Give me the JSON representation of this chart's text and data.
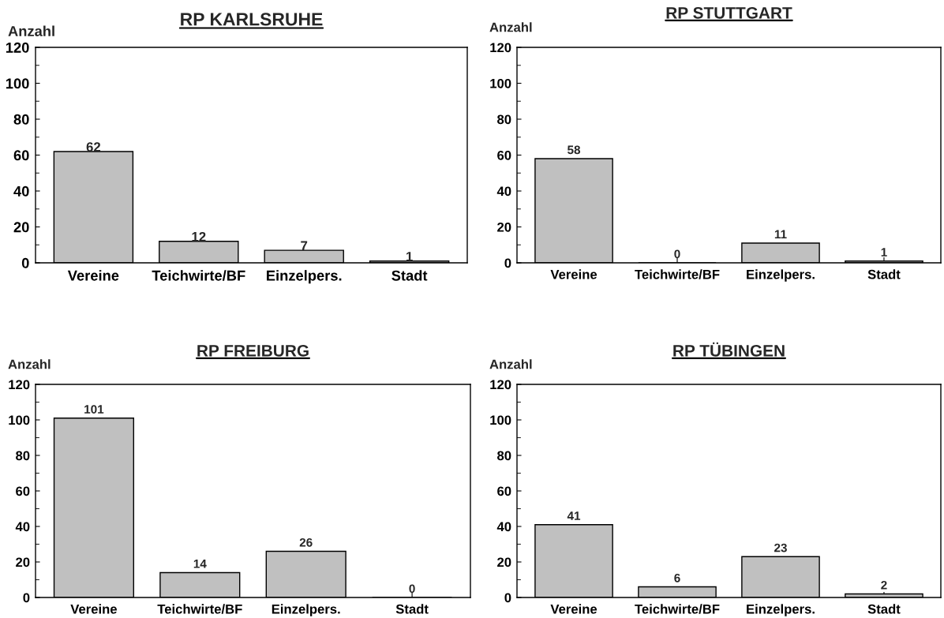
{
  "chart_data": [
    {
      "type": "bar",
      "title": "RP KARLSRUHE",
      "ylabel": "Anzahl",
      "categories": [
        "Vereine",
        "Teichwirte/BF",
        "Einzelpers.",
        "Stadt"
      ],
      "values": [
        62,
        12,
        7,
        1
      ],
      "color": "#c0c0c0",
      "ylim": [
        0,
        120
      ],
      "yticks": [
        0,
        {
          "value": 10,
          "label": null
        },
        20,
        {
          "value": 30,
          "label": null
        },
        40,
        {
          "value": 50,
          "label": null
        },
        60,
        {
          "value": 70,
          "label": null
        },
        80,
        {
          "value": 90,
          "label": null
        },
        100,
        {
          "value": 110,
          "label": null
        },
        120
      ],
      "data_labels": true
    },
    {
      "type": "bar",
      "title": "RP STUTTGART",
      "ylabel": "Anzahl",
      "categories": [
        "Vereine",
        "Teichwirte/BF",
        "Einzelpers.",
        "Stadt"
      ],
      "values": [
        58,
        0,
        11,
        1
      ],
      "color": "#c0c0c0",
      "ylim": [
        0,
        120
      ],
      "yticks": [
        0,
        {
          "value": 10,
          "label": null
        },
        20,
        {
          "value": 30,
          "label": null
        },
        40,
        {
          "value": 50,
          "label": null
        },
        60,
        {
          "value": 70,
          "label": null
        },
        80,
        {
          "value": 90,
          "label": null
        },
        100,
        {
          "value": 110,
          "label": null
        },
        120
      ],
      "data_labels": true
    },
    {
      "type": "bar",
      "title": "RP FREIBURG",
      "ylabel": "Anzahl",
      "categories": [
        "Vereine",
        "Teichwirte/BF",
        "Einzelpers.",
        "Stadt"
      ],
      "values": [
        101,
        14,
        26,
        0
      ],
      "color": "#c0c0c0",
      "ylim": [
        0,
        120
      ],
      "yticks": [
        0,
        {
          "value": 10,
          "label": null
        },
        20,
        {
          "value": 30,
          "label": null
        },
        40,
        {
          "value": 50,
          "label": null
        },
        60,
        {
          "value": 70,
          "label": null
        },
        80,
        {
          "value": 90,
          "label": null
        },
        100,
        {
          "value": 110,
          "label": null
        },
        120
      ],
      "data_labels": true
    },
    {
      "type": "bar",
      "title": "RP TÜBINGEN",
      "ylabel": "Anzahl",
      "categories": [
        "Vereine",
        "Teichwirte/BF",
        "Einzelpers.",
        "Stadt"
      ],
      "values": [
        41,
        6,
        23,
        2
      ],
      "color": "#c0c0c0",
      "ylim": [
        0,
        120
      ],
      "yticks": [
        0,
        {
          "value": 10,
          "label": null
        },
        20,
        {
          "value": 30,
          "label": null
        },
        40,
        {
          "value": 50,
          "label": null
        },
        60,
        {
          "value": 70,
          "label": null
        },
        80,
        {
          "value": 90,
          "label": null
        },
        100,
        {
          "value": 110,
          "label": null
        },
        120
      ],
      "data_labels": true
    }
  ]
}
